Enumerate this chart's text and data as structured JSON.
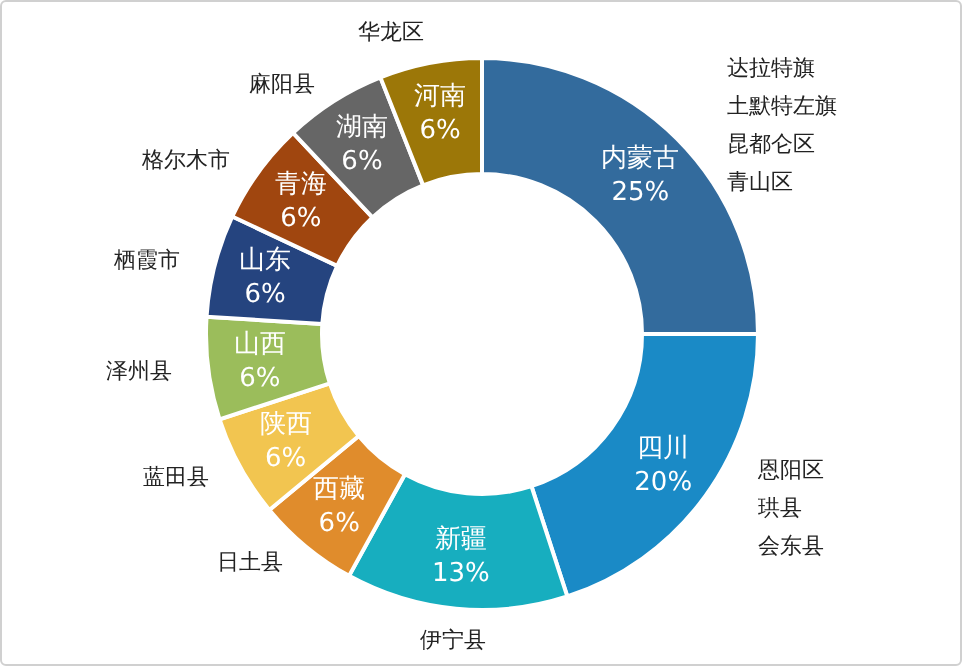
{
  "chart_data": {
    "type": "donut",
    "categories": [
      "内蒙古",
      "四川",
      "新疆",
      "西藏",
      "陕西",
      "山西",
      "山东",
      "青海",
      "湖南",
      "河南"
    ],
    "values": [
      25,
      20,
      13,
      6,
      6,
      6,
      6,
      6,
      6,
      6
    ],
    "value_labels": [
      "25%",
      "20%",
      "13%",
      "6%",
      "6%",
      "6%",
      "6%",
      "6%",
      "6%",
      "6%"
    ],
    "colors": [
      "#336b9d",
      "#1a8ac6",
      "#17aebf",
      "#e08c2c",
      "#f2c550",
      "#9bbd5b",
      "#25447f",
      "#a0460f",
      "#666666",
      "#9c7708"
    ],
    "annotations": [
      {
        "text": "达拉特旗",
        "x": "内蒙古"
      },
      {
        "text": "土默特左旗",
        "x": "内蒙古"
      },
      {
        "text": "昆都仑区",
        "x": "内蒙古"
      },
      {
        "text": "青山区",
        "x": "内蒙古"
      },
      {
        "text": "恩阳区",
        "x": "四川"
      },
      {
        "text": "珙县",
        "x": "四川"
      },
      {
        "text": "会东县",
        "x": "四川"
      },
      {
        "text": "伊宁县",
        "x": "新疆"
      },
      {
        "text": "日土县",
        "x": "西藏"
      },
      {
        "text": "蓝田县",
        "x": "陕西"
      },
      {
        "text": "泽州县",
        "x": "山西"
      },
      {
        "text": "栖霞市",
        "x": "山东"
      },
      {
        "text": "格尔木市",
        "x": "青海"
      },
      {
        "text": "麻阳县",
        "x": "湖南"
      },
      {
        "text": "华龙区",
        "x": "河南"
      }
    ],
    "legend": false
  }
}
